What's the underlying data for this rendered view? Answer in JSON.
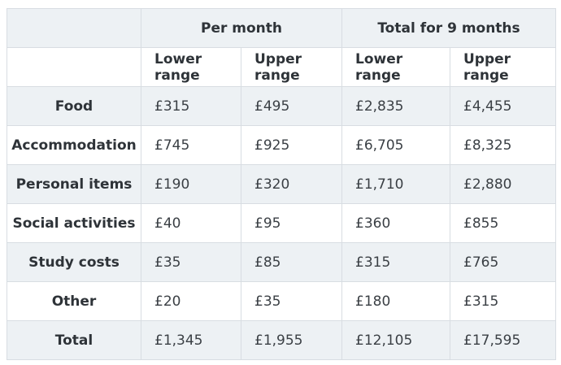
{
  "table": {
    "column_groups": [
      {
        "label": "Per month"
      },
      {
        "label": "Total for 9 months"
      }
    ],
    "sub_headers": [
      "Lower range",
      "Upper range",
      "Lower range",
      "Upper range"
    ],
    "rows": [
      {
        "label": "Food",
        "values": [
          "£315",
          "£495",
          "£2,835",
          "£4,455"
        ]
      },
      {
        "label": "Accommodation",
        "values": [
          "£745",
          "£925",
          "£6,705",
          "£8,325"
        ]
      },
      {
        "label": "Personal items",
        "values": [
          "£190",
          "£320",
          "£1,710",
          "£2,880"
        ]
      },
      {
        "label": "Social activities",
        "values": [
          "£40",
          "£95",
          "£360",
          "£855"
        ]
      },
      {
        "label": "Study costs",
        "values": [
          "£35",
          "£85",
          "£315",
          "£765"
        ]
      },
      {
        "label": "Other",
        "values": [
          "£20",
          "£35",
          "£180",
          "£315"
        ]
      },
      {
        "label": "Total",
        "values": [
          "£1,345",
          "£1,955",
          "£12,105",
          "£17,595"
        ]
      }
    ]
  },
  "colors": {
    "stripe_background": "#edf1f4",
    "border": "#d8dde2",
    "text": "#333333",
    "page_background": "#ffffff"
  }
}
